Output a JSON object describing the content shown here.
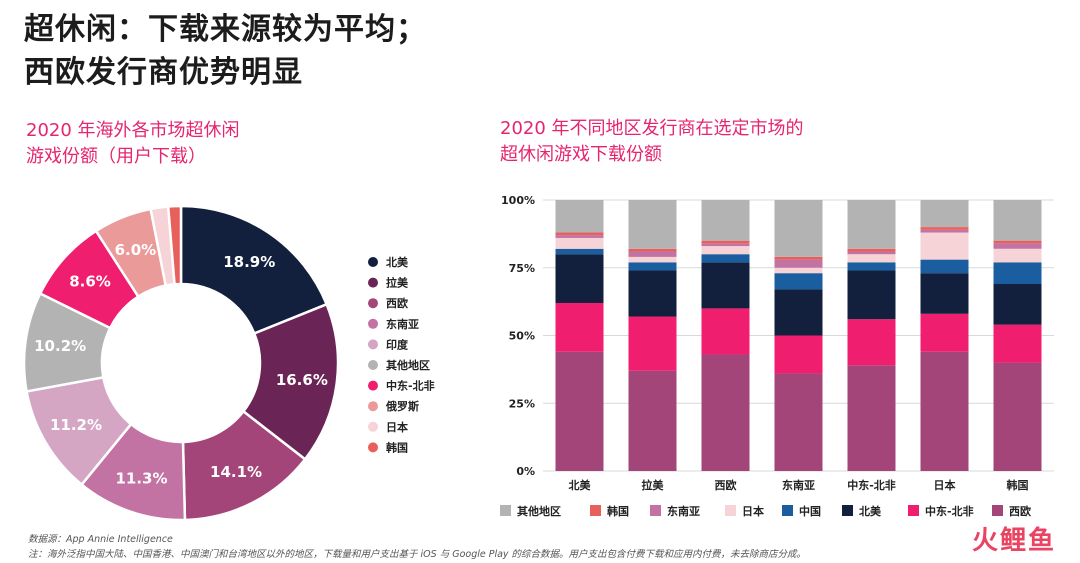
{
  "page": {
    "title_line1": "超休闲：下载来源较为平均；",
    "title_line2": "西欧发行商优势明显",
    "source": "数据源：App Annie Intelligence",
    "note": "注：海外泛指中国大陆、中国香港、中国澳门和台湾地区以外的地区，下载量和用户支出基于 iOS 与 Google Play 的综合数据。用户支出包含付费下载和应用内付费，未去除商店分成。",
    "watermark": "火鲤鱼"
  },
  "chart_data": [
    {
      "type": "pie",
      "donut": true,
      "title_line1": "2020 年海外各市场超休闲",
      "title_line2": "游戏份额（用户下载）",
      "legend_position": "right",
      "slices": [
        {
          "name": "北美",
          "value": 18.9,
          "label": "18.9%",
          "color": "#12203d"
        },
        {
          "name": "拉美",
          "value": 16.6,
          "label": "16.6%",
          "color": "#6b2456"
        },
        {
          "name": "西欧",
          "value": 14.1,
          "label": "14.1%",
          "color": "#a44579"
        },
        {
          "name": "东南亚",
          "value": 11.3,
          "label": "11.3%",
          "color": "#c272a3"
        },
        {
          "name": "印度",
          "value": 11.2,
          "label": "11.2%",
          "color": "#d4a6c4"
        },
        {
          "name": "其他地区",
          "value": 10.2,
          "label": "10.2%",
          "color": "#b3b3b3"
        },
        {
          "name": "中东-北非",
          "value": 8.6,
          "label": "8.6%",
          "color": "#f01e6e"
        },
        {
          "name": "俄罗斯",
          "value": 6.0,
          "label": "6.0%",
          "color": "#eb9a9a"
        },
        {
          "name": "日本",
          "value": 1.8,
          "label": "",
          "color": "#f6d3d6"
        },
        {
          "name": "韩国",
          "value": 1.3,
          "label": "",
          "color": "#e8605c"
        }
      ]
    },
    {
      "type": "bar",
      "stacked": true,
      "title_line1": "2020 年不同地区发行商在选定市场的",
      "title_line2": "超休闲游戏下载份额",
      "categories": [
        "北美",
        "拉美",
        "西欧",
        "东南亚",
        "中东-北非",
        "日本",
        "韩国"
      ],
      "yticks": [
        "0%",
        "25%",
        "50%",
        "75%",
        "100%"
      ],
      "ylim": [
        0,
        100
      ],
      "grid": true,
      "legend_position": "bottom",
      "legend_order": [
        "其他地区",
        "韩国",
        "东南亚",
        "日本",
        "中国",
        "北美",
        "中东-北非",
        "西欧"
      ],
      "series": [
        {
          "name": "西欧",
          "color": "#a44579",
          "values": [
            44,
            37,
            43,
            36,
            39,
            44,
            40
          ]
        },
        {
          "name": "中东-北非",
          "color": "#f01e6e",
          "values": [
            18,
            20,
            17,
            14,
            17,
            14,
            14
          ]
        },
        {
          "name": "北美",
          "color": "#12203d",
          "values": [
            18,
            17,
            17,
            17,
            18,
            15,
            15
          ]
        },
        {
          "name": "中国",
          "color": "#1a5ea0",
          "values": [
            2,
            3,
            3,
            6,
            3,
            5,
            8
          ]
        },
        {
          "name": "日本",
          "color": "#f6d3d6",
          "values": [
            4,
            2,
            3,
            2,
            3,
            10,
            5
          ]
        },
        {
          "name": "东南亚",
          "color": "#c272a3",
          "values": [
            1,
            2,
            1,
            3,
            1,
            1,
            2
          ]
        },
        {
          "name": "韩国",
          "color": "#e8605c",
          "values": [
            1,
            1,
            1,
            1,
            1,
            1,
            1
          ]
        },
        {
          "name": "其他地区",
          "color": "#b3b3b3",
          "values": [
            12,
            18,
            15,
            21,
            18,
            10,
            15
          ]
        }
      ]
    }
  ]
}
